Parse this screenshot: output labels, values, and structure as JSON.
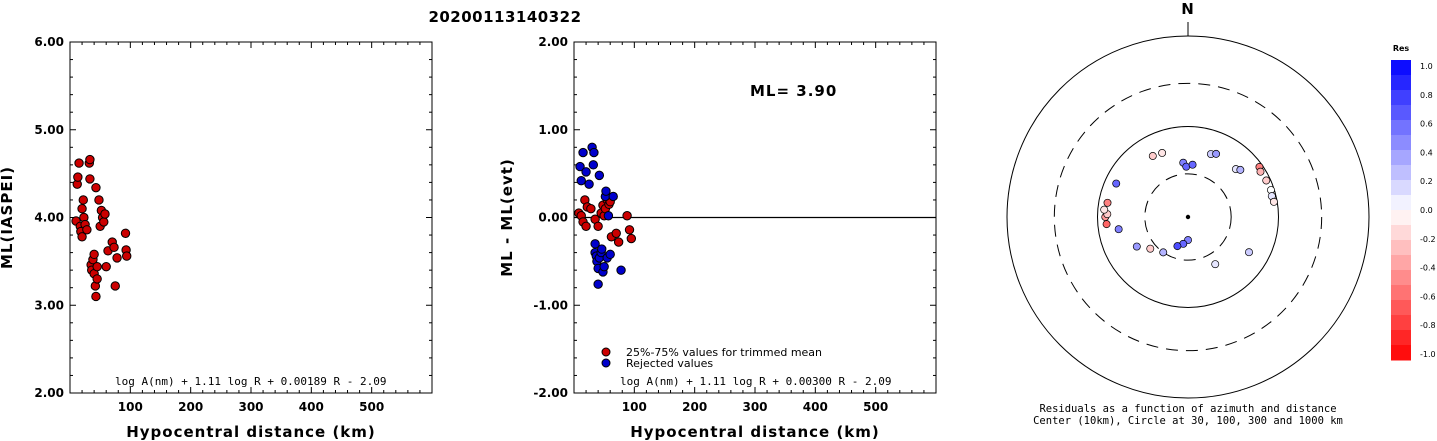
{
  "page_title": "20200113140322",
  "chart_data": [
    {
      "type": "scatter",
      "xlabel": "Hypocentral distance (km)",
      "ylabel": "ML(IASPEI)",
      "xlim": [
        0,
        600
      ],
      "ylim": [
        2.0,
        6.0
      ],
      "x_ticks": [
        "100",
        "200",
        "300",
        "400",
        "500"
      ],
      "y_ticks": [
        "6.00",
        "5.00",
        "4.00",
        "3.00",
        "2.00"
      ],
      "formula": "log A(nm) + 1.11 log R + 0.00189 R - 2.09",
      "color": "#cc0000",
      "points": [
        [
          10,
          3.96
        ],
        [
          12,
          4.38
        ],
        [
          13,
          4.46
        ],
        [
          15,
          4.62
        ],
        [
          17,
          3.9
        ],
        [
          18,
          3.84
        ],
        [
          20,
          4.1
        ],
        [
          20,
          3.78
        ],
        [
          22,
          4.2
        ],
        [
          23,
          4.0
        ],
        [
          25,
          3.92
        ],
        [
          28,
          3.86
        ],
        [
          32,
          4.62
        ],
        [
          33,
          4.66
        ],
        [
          33,
          4.44
        ],
        [
          35,
          3.46
        ],
        [
          36,
          3.4
        ],
        [
          38,
          3.52
        ],
        [
          40,
          3.58
        ],
        [
          40,
          3.36
        ],
        [
          42,
          3.22
        ],
        [
          43,
          3.1
        ],
        [
          43,
          4.34
        ],
        [
          45,
          3.44
        ],
        [
          45,
          3.3
        ],
        [
          48,
          4.2
        ],
        [
          50,
          3.9
        ],
        [
          52,
          4.08
        ],
        [
          54,
          4.0
        ],
        [
          56,
          3.95
        ],
        [
          58,
          4.04
        ],
        [
          60,
          3.44
        ],
        [
          63,
          3.62
        ],
        [
          70,
          3.72
        ],
        [
          73,
          3.66
        ],
        [
          75,
          3.22
        ],
        [
          78,
          3.54
        ],
        [
          92,
          3.82
        ],
        [
          93,
          3.63
        ],
        [
          94,
          3.56
        ]
      ]
    },
    {
      "type": "scatter",
      "xlabel": "Hypocentral distance (km)",
      "ylabel": "ML - ML(evt)",
      "xlim": [
        0,
        600
      ],
      "ylim": [
        -2.0,
        2.0
      ],
      "x_ticks": [
        "100",
        "200",
        "300",
        "400",
        "500"
      ],
      "y_ticks": [
        "2.00",
        "1.00",
        "0.00",
        "-1.00",
        "-2.00"
      ],
      "annotation": "ML= 3.90",
      "formula": "log A(nm) + 1.11 log R + 0.00300 R - 2.09",
      "legend": [
        "25%-75% values for trimmed mean",
        "Rejected values"
      ],
      "series": [
        {
          "name": "25%-75% values for trimmed mean",
          "color": "#cc0000",
          "points": [
            [
              8,
              0.05
            ],
            [
              12,
              0.02
            ],
            [
              15,
              -0.05
            ],
            [
              18,
              0.2
            ],
            [
              20,
              -0.1
            ],
            [
              22,
              0.12
            ],
            [
              28,
              0.1
            ],
            [
              35,
              -0.02
            ],
            [
              40,
              -0.1
            ],
            [
              45,
              0.05
            ],
            [
              48,
              0.14
            ],
            [
              50,
              0.02
            ],
            [
              52,
              0.1
            ],
            [
              55,
              0.2
            ],
            [
              58,
              0.15
            ],
            [
              60,
              0.18
            ],
            [
              62,
              -0.22
            ],
            [
              70,
              -0.18
            ],
            [
              74,
              -0.28
            ],
            [
              88,
              0.02
            ],
            [
              92,
              -0.14
            ],
            [
              95,
              -0.24
            ]
          ]
        },
        {
          "name": "Rejected values",
          "color": "#0000cc",
          "points": [
            [
              10,
              0.58
            ],
            [
              12,
              0.42
            ],
            [
              15,
              0.74
            ],
            [
              20,
              0.52
            ],
            [
              25,
              0.38
            ],
            [
              30,
              0.8
            ],
            [
              32,
              0.6
            ],
            [
              33,
              0.74
            ],
            [
              35,
              -0.3
            ],
            [
              35,
              -0.4
            ],
            [
              37,
              -0.44
            ],
            [
              38,
              -0.5
            ],
            [
              40,
              -0.58
            ],
            [
              40,
              -0.76
            ],
            [
              42,
              -0.46
            ],
            [
              45,
              -0.4
            ],
            [
              46,
              -0.36
            ],
            [
              48,
              -0.62
            ],
            [
              50,
              -0.56
            ],
            [
              52,
              0.24
            ],
            [
              53,
              0.3
            ],
            [
              55,
              -0.46
            ],
            [
              57,
              0.02
            ],
            [
              60,
              -0.42
            ],
            [
              65,
              0.24
            ],
            [
              78,
              -0.6
            ],
            [
              42,
              0.48
            ]
          ]
        }
      ]
    },
    {
      "type": "scatter",
      "subtype": "polar",
      "north_label": "N",
      "caption_line1": "Residuals as a function of azimuth and distance",
      "caption_line2": "Center (10km), Circle at 30, 100, 300 and 1000 km",
      "circles_km": [
        30,
        100,
        300,
        1000
      ],
      "colorbar_title": "Res",
      "colorbar_ticks": [
        "1.0",
        "0.8",
        "0.6",
        "0.4",
        "0.2",
        "0.0",
        "-0.2",
        "-0.4",
        "-0.6",
        "-0.8",
        "-1.0"
      ],
      "points_az_dist_res": [
        [
          330,
          60,
          -0.2
        ],
        [
          338,
          58,
          -0.1
        ],
        [
          355,
          40,
          0.5
        ],
        [
          358,
          36,
          0.6
        ],
        [
          5,
          38,
          0.6
        ],
        [
          20,
          55,
          0.2
        ],
        [
          24,
          58,
          0.4
        ],
        [
          45,
          56,
          0.1
        ],
        [
          48,
          60,
          0.3
        ],
        [
          55,
          92,
          -0.5
        ],
        [
          58,
          88,
          -0.3
        ],
        [
          65,
          90,
          -0.2
        ],
        [
          72,
          92,
          0.0
        ],
        [
          76,
          90,
          0.1
        ],
        [
          80,
          92,
          -0.1
        ],
        [
          120,
          60,
          0.2
        ],
        [
          150,
          40,
          0.1
        ],
        [
          180,
          18,
          0.5
        ],
        [
          190,
          20,
          0.6
        ],
        [
          200,
          22,
          0.7
        ],
        [
          215,
          30,
          0.3
        ],
        [
          230,
          35,
          -0.2
        ],
        [
          240,
          45,
          0.4
        ],
        [
          260,
          60,
          0.5
        ],
        [
          265,
          80,
          -0.6
        ],
        [
          270,
          82,
          -0.4
        ],
        [
          272,
          78,
          -0.2
        ],
        [
          275,
          85,
          -0.1
        ],
        [
          280,
          80,
          -0.5
        ],
        [
          295,
          75,
          0.6
        ]
      ]
    }
  ]
}
